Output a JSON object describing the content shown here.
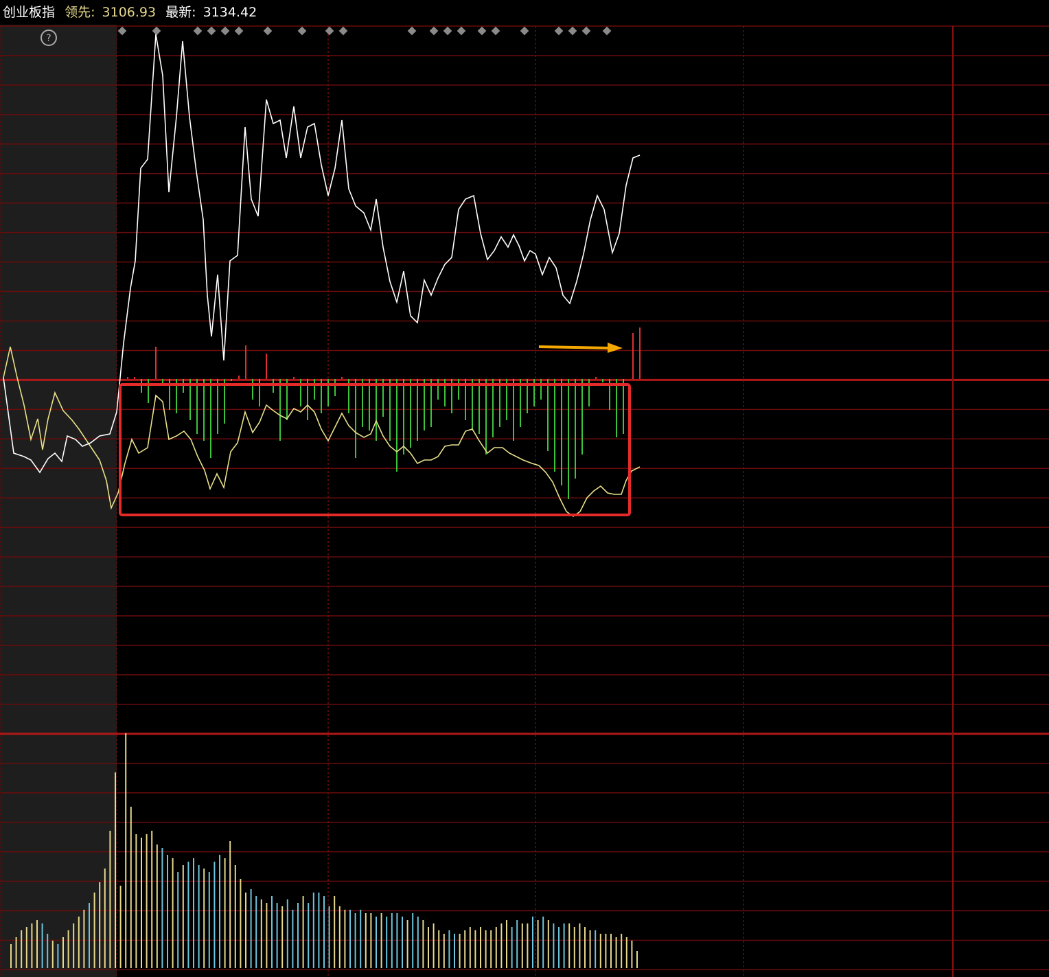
{
  "header": {
    "name": "创业板指",
    "lead_label": "领先:",
    "lead_value": "3106.93",
    "last_label": "最新:",
    "last_value": "3134.42"
  },
  "chart_data": [
    {
      "type": "line",
      "ylim": [
        0,
        1030
      ],
      "x": [
        5,
        20,
        35,
        45,
        58,
        70,
        80,
        90,
        98,
        110,
        120,
        132,
        145,
        160,
        170,
        180,
        190,
        197,
        205,
        215,
        227,
        237,
        246,
        257,
        266,
        276,
        286,
        296,
        302,
        308,
        317,
        326,
        335,
        346,
        357,
        366,
        376,
        388,
        398,
        408,
        417,
        428,
        438,
        448,
        458,
        468,
        478,
        488,
        498,
        508,
        518,
        530,
        540,
        548,
        558,
        568,
        578,
        588,
        598,
        608,
        618,
        628,
        638,
        648,
        658,
        668,
        678,
        690,
        700,
        710,
        720,
        730,
        740,
        748,
        756,
        764,
        772,
        780,
        790,
        800,
        810,
        820,
        830,
        840,
        850,
        860,
        870,
        880,
        892,
        902,
        912,
        922,
        932
      ],
      "series": [
        {
          "color": "#ffffff",
          "values": [
            518,
            408,
            403,
            398,
            380,
            400,
            408,
            396,
            433,
            428,
            418,
            423,
            433,
            436,
            468,
            568,
            648,
            688,
            823,
            836,
            1018,
            958,
            788,
            898,
            1008,
            898,
            818,
            748,
            638,
            578,
            668,
            543,
            688,
            696,
            883,
            778,
            753,
            923,
            888,
            893,
            838,
            913,
            838,
            883,
            888,
            828,
            783,
            823,
            893,
            793,
            768,
            758,
            733,
            778,
            708,
            658,
            628,
            673,
            608,
            598,
            660,
            638,
            663,
            683,
            693,
            763,
            778,
            783,
            728,
            690,
            703,
            723,
            708,
            726,
            710,
            688,
            703,
            698,
            668,
            693,
            678,
            638,
            626,
            658,
            698,
            748,
            783,
            763,
            700,
            728,
            798,
            838,
            842
          ]
        }
      ]
    },
    {
      "type": "line",
      "ylim": [
        0,
        1030
      ],
      "x": [
        5,
        15,
        25,
        35,
        45,
        55,
        62,
        70,
        80,
        92,
        105,
        115,
        125,
        135,
        145,
        155,
        162,
        172,
        182,
        192,
        202,
        215,
        227,
        237,
        246,
        257,
        268,
        278,
        288,
        298,
        306,
        316,
        326,
        336,
        346,
        357,
        368,
        378,
        388,
        398,
        408,
        418,
        428,
        438,
        448,
        458,
        468,
        478,
        488,
        498,
        508,
        518,
        530,
        540,
        548,
        558,
        568,
        578,
        588,
        598,
        608,
        618,
        628,
        638,
        648,
        658,
        668,
        678,
        688,
        698,
        710,
        720,
        732,
        742,
        752,
        762,
        775,
        785,
        795,
        805,
        815,
        825,
        835,
        845,
        855,
        865,
        875,
        885,
        895,
        905,
        912,
        920,
        932
      ],
      "series": [
        {
          "color": "#e8e08a",
          "values": [
            518,
            563,
            518,
            478,
            428,
            458,
            413,
            458,
            496,
            470,
            456,
            443,
            428,
            413,
            398,
            368,
            328,
            350,
            393,
            428,
            408,
            416,
            492,
            483,
            428,
            433,
            440,
            428,
            403,
            383,
            356,
            378,
            358,
            410,
            423,
            468,
            438,
            453,
            478,
            470,
            463,
            458,
            473,
            468,
            478,
            468,
            443,
            426,
            446,
            466,
            448,
            438,
            431,
            436,
            455,
            433,
            418,
            410,
            418,
            408,
            393,
            398,
            398,
            403,
            418,
            420,
            420,
            440,
            443,
            426,
            408,
            416,
            416,
            408,
            403,
            398,
            393,
            390,
            380,
            366,
            343,
            323,
            316,
            323,
            343,
            353,
            360,
            350,
            348,
            348,
            368,
            382,
            388
          ]
        }
      ]
    },
    {
      "type": "bar",
      "ylim": [
        -516,
        514
      ],
      "up_color": "#e03030",
      "down_color": "#3cc43c",
      "x": [
        186,
        196,
        206,
        216,
        227,
        237,
        247,
        257,
        267,
        277,
        287,
        297,
        307,
        317,
        327,
        337,
        348,
        358,
        368,
        378,
        388,
        398,
        408,
        418,
        428,
        438,
        448,
        458,
        468,
        478,
        488,
        498,
        508,
        518,
        528,
        538,
        548,
        558,
        568,
        578,
        588,
        598,
        608,
        618,
        628,
        638,
        648,
        658,
        668,
        678,
        688,
        698,
        708,
        718,
        728,
        738,
        748,
        758,
        768,
        778,
        788,
        798,
        808,
        818,
        828,
        838,
        848,
        858,
        868,
        878,
        888,
        898,
        908,
        922,
        932
      ],
      "values": [
        3,
        3,
        -20,
        -35,
        47,
        -8,
        -45,
        -50,
        -20,
        -60,
        -80,
        -90,
        -115,
        -80,
        -65,
        -3,
        5,
        49,
        -30,
        -40,
        37,
        -20,
        -90,
        -60,
        3,
        -40,
        -60,
        -30,
        -50,
        -40,
        -25,
        3,
        -50,
        -115,
        -70,
        -75,
        -90,
        -55,
        -90,
        -135,
        -110,
        -100,
        -90,
        -75,
        -70,
        -30,
        -40,
        -50,
        -30,
        -60,
        -75,
        -80,
        -110,
        -85,
        -70,
        -60,
        -90,
        -70,
        -50,
        -40,
        -30,
        -105,
        -135,
        -155,
        -175,
        -145,
        -110,
        -40,
        3,
        -5,
        -45,
        -85,
        -80,
        67,
        75
      ]
    },
    {
      "type": "bar",
      "ylim": [
        0,
        342
      ],
      "values": [
        35,
        45,
        55,
        60,
        65,
        70,
        65,
        50,
        40,
        35,
        45,
        55,
        65,
        75,
        85,
        95,
        110,
        125,
        145,
        200,
        285,
        120,
        342,
        235,
        195,
        190,
        195,
        200,
        180,
        175,
        165,
        160,
        140,
        150,
        155,
        160,
        150,
        145,
        140,
        155,
        165,
        160,
        185,
        150,
        130,
        110,
        115,
        105,
        100,
        95,
        105,
        95,
        90,
        100,
        85,
        95,
        105,
        95,
        110,
        110,
        105,
        90,
        105,
        90,
        85,
        85,
        80,
        85,
        80,
        80,
        75,
        80,
        75,
        80,
        80,
        75,
        70,
        80,
        75,
        70,
        60,
        65,
        55,
        50,
        55,
        50,
        50,
        55,
        60,
        55,
        60,
        55,
        55,
        60,
        65,
        70,
        60,
        70,
        65,
        65,
        75,
        70,
        75,
        70,
        65,
        60,
        65,
        65,
        60,
        65,
        60,
        55,
        55,
        50,
        50,
        50,
        45,
        50,
        45,
        40,
        25
      ],
      "colors": [
        "#e6d88c",
        "#e6d88c",
        "#e6d88c",
        "#e6d88c",
        "#e6d88c",
        "#e6d88c",
        "#6ec4dc",
        "#6ec4dc",
        "#e6d88c",
        "#6ec4dc",
        "#e6d88c",
        "#e6d88c",
        "#e6d88c",
        "#e6d88c",
        "#e6d88c",
        "#6ec4dc",
        "#e6d88c",
        "#e6d88c",
        "#e6d88c",
        "#e6d88c",
        "#e6d88c",
        "#e6d88c",
        "#e6d88c",
        "#e6d88c",
        "#e6d88c",
        "#e6d88c",
        "#e6d88c",
        "#e6d88c",
        "#e6d88c",
        "#6ec4dc",
        "#6ec4dc",
        "#e6d88c",
        "#6ec4dc",
        "#e6d88c",
        "#6ec4dc",
        "#6ec4dc",
        "#6ec4dc",
        "#e6d88c",
        "#6ec4dc",
        "#6ec4dc",
        "#6ec4dc",
        "#e6d88c",
        "#e6d88c",
        "#e6d88c",
        "#e6d88c",
        "#e6d88c",
        "#6ec4dc",
        "#6ec4dc",
        "#e6d88c",
        "#e6d88c",
        "#6ec4dc",
        "#6ec4dc",
        "#e6d88c",
        "#6ec4dc",
        "#6ec4dc",
        "#6ec4dc",
        "#e6d88c",
        "#6ec4dc",
        "#6ec4dc",
        "#6ec4dc",
        "#6ec4dc",
        "#6ec4dc",
        "#e6d88c",
        "#e6d88c",
        "#e6d88c",
        "#6ec4dc",
        "#6ec4dc",
        "#6ec4dc",
        "#e6d88c",
        "#e6d88c",
        "#6ec4dc",
        "#e6d88c",
        "#6ec4dc",
        "#6ec4dc",
        "#6ec4dc",
        "#6ec4dc",
        "#e6d88c",
        "#6ec4dc",
        "#6ec4dc",
        "#e6d88c",
        "#e6d88c",
        "#e6d88c",
        "#e6d88c",
        "#e6d88c",
        "#6ec4dc",
        "#6ec4dc",
        "#e6d88c",
        "#e6d88c",
        "#e6d88c",
        "#e6d88c",
        "#e6d88c",
        "#e6d88c",
        "#e6d88c",
        "#e6d88c",
        "#e6d88c",
        "#e6d88c",
        "#6ec4dc",
        "#6ec4dc",
        "#e6d88c",
        "#e6d88c",
        "#6ec4dc",
        "#e6d88c",
        "#6ec4dc",
        "#e6d88c",
        "#6ec4dc",
        "#6ec4dc",
        "#6ec4dc",
        "#e6d88c",
        "#e6d88c",
        "#e6d88c",
        "#e6d88c",
        "#e6d88c",
        "#6ec4dc",
        "#e6d88c",
        "#e6d88c",
        "#e6d88c",
        "#e6d88c",
        "#e6d88c",
        "#e6d88c",
        "#e6d88c",
        "#e6d88c"
      ]
    }
  ]
}
